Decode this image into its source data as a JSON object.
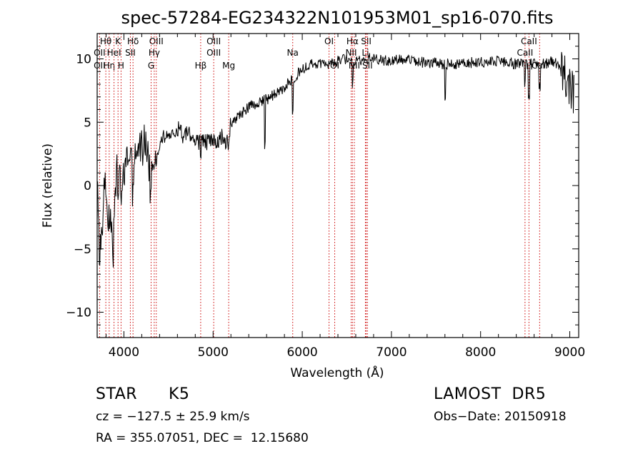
{
  "chart_data": {
    "type": "line",
    "title": "spec-57284-EG234322N101953M01_sp16-070.fits",
    "xlabel": "Wavelength (Å)",
    "ylabel": "Flux (relative)",
    "xlim": [
      3700,
      9100
    ],
    "ylim": [
      -12,
      12
    ],
    "xticks": [
      "4000",
      "5000",
      "6000",
      "7000",
      "8000",
      "9000"
    ],
    "yticks": [
      "-10",
      "-5",
      "0",
      "5",
      "10"
    ],
    "grid": false,
    "series": [
      {
        "color": "#000000",
        "anchors": [
          [
            3700,
            0
          ],
          [
            3730,
            -6
          ],
          [
            3760,
            -3
          ],
          [
            3790,
            1.5
          ],
          [
            3820,
            -2
          ],
          [
            3850,
            -3
          ],
          [
            3880,
            -5
          ],
          [
            3900,
            0
          ],
          [
            3930,
            1.5
          ],
          [
            3960,
            1
          ],
          [
            4000,
            0.5
          ],
          [
            4050,
            2
          ],
          [
            4100,
            1.5
          ],
          [
            4150,
            2.5
          ],
          [
            4200,
            3
          ],
          [
            4250,
            3.5
          ],
          [
            4300,
            1
          ],
          [
            4350,
            2
          ],
          [
            4400,
            3
          ],
          [
            4450,
            3.8
          ],
          [
            4500,
            3.5
          ],
          [
            4550,
            4.2
          ],
          [
            4600,
            4.5
          ],
          [
            4650,
            4
          ],
          [
            4700,
            4.2
          ],
          [
            4750,
            3.8
          ],
          [
            4800,
            3.5
          ],
          [
            4850,
            3.5
          ],
          [
            4900,
            3.6
          ],
          [
            4950,
            3.4
          ],
          [
            5000,
            3.5
          ],
          [
            5050,
            3.5
          ],
          [
            5100,
            3.8
          ],
          [
            5150,
            3.2
          ],
          [
            5200,
            5
          ],
          [
            5300,
            5.5
          ],
          [
            5400,
            6.2
          ],
          [
            5500,
            6.5
          ],
          [
            5600,
            6.8
          ],
          [
            5700,
            7.2
          ],
          [
            5800,
            7.8
          ],
          [
            5900,
            8.5
          ],
          [
            6000,
            9.2
          ],
          [
            6100,
            9.6
          ],
          [
            6200,
            9.7
          ],
          [
            6300,
            9.5
          ],
          [
            6400,
            9.9
          ],
          [
            6500,
            10
          ],
          [
            6600,
            9.9
          ],
          [
            6700,
            10
          ],
          [
            6800,
            10.1
          ],
          [
            6900,
            9.8
          ],
          [
            7000,
            9.9
          ],
          [
            7200,
            9.9
          ],
          [
            7400,
            9.7
          ],
          [
            7600,
            9.6
          ],
          [
            7800,
            9.6
          ],
          [
            8000,
            9.8
          ],
          [
            8200,
            9.8
          ],
          [
            8400,
            9.6
          ],
          [
            8600,
            9.6
          ],
          [
            8800,
            9.8
          ],
          [
            8900,
            9.5
          ],
          [
            9000,
            8
          ],
          [
            9050,
            7
          ]
        ],
        "absorption_features": [
          [
            3934,
            -2.5
          ],
          [
            3968,
            -3
          ],
          [
            4102,
            -2
          ],
          [
            4300,
            -2
          ],
          [
            4861,
            -1.5
          ],
          [
            5172,
            -1.5
          ],
          [
            5582,
            -3.5
          ],
          [
            5893,
            -2.5
          ],
          [
            6563,
            -1.8
          ],
          [
            7605,
            -3
          ],
          [
            8498,
            -1.5
          ],
          [
            8542,
            -2.5
          ],
          [
            8662,
            -2
          ]
        ]
      }
    ],
    "line_markers": [
      {
        "name": "Hθ",
        "wavelength": 3797,
        "row": 1
      },
      {
        "name": "OII",
        "wavelength": 3727,
        "row": 2
      },
      {
        "name": "OII",
        "wavelength": 3727,
        "row": 3
      },
      {
        "name": "Hη",
        "wavelength": 3835,
        "row": 3
      },
      {
        "name": "HeI",
        "wavelength": 3889,
        "row": 2
      },
      {
        "name": "K",
        "wavelength": 3934,
        "row": 1
      },
      {
        "name": "H",
        "wavelength": 3968,
        "row": 3
      },
      {
        "name": "SII",
        "wavelength": 4072,
        "row": 2
      },
      {
        "name": "Hδ",
        "wavelength": 4102,
        "row": 1
      },
      {
        "name": "OIII",
        "wavelength": 4363,
        "row": 1
      },
      {
        "name": "Hγ",
        "wavelength": 4340,
        "row": 2
      },
      {
        "name": "G",
        "wavelength": 4305,
        "row": 3
      },
      {
        "name": "Hβ",
        "wavelength": 4861,
        "row": 3
      },
      {
        "name": "OIII",
        "wavelength": 5007,
        "row": 1
      },
      {
        "name": "OIII",
        "wavelength": 5007,
        "row": 2
      },
      {
        "name": "Mg",
        "wavelength": 5175,
        "row": 3
      },
      {
        "name": "Na",
        "wavelength": 5893,
        "row": 2
      },
      {
        "name": "OI",
        "wavelength": 6300,
        "row": 1
      },
      {
        "name": "OI",
        "wavelength": 6364,
        "row": 3
      },
      {
        "name": "Hα",
        "wavelength": 6563,
        "row": 1
      },
      {
        "name": "NII",
        "wavelength": 6548,
        "row": 2
      },
      {
        "name": "NII",
        "wavelength": 6584,
        "row": 3
      },
      {
        "name": "SII",
        "wavelength": 6717,
        "row": 1
      },
      {
        "name": "Li",
        "wavelength": 6708,
        "row": 2
      },
      {
        "name": "SII",
        "wavelength": 6731,
        "row": 3
      },
      {
        "name": "CaII",
        "wavelength": 8542,
        "row": 1
      },
      {
        "name": "CaII",
        "wavelength": 8498,
        "row": 2
      },
      {
        "name": "CaII",
        "wavelength": 8662,
        "row": 3
      }
    ]
  },
  "info": {
    "class": "STAR",
    "subclass": "K5",
    "survey": "LAMOST  DR5",
    "velocity": "cz = −127.5 ± 25.9 km/s",
    "obs_date": "Obs−Date: 20150918",
    "coords": "RA = 355.07051, DEC =  12.15680"
  },
  "colors": {
    "spectrum": "#000000",
    "marker_lines": "#cc0000",
    "axes": "#000000"
  }
}
